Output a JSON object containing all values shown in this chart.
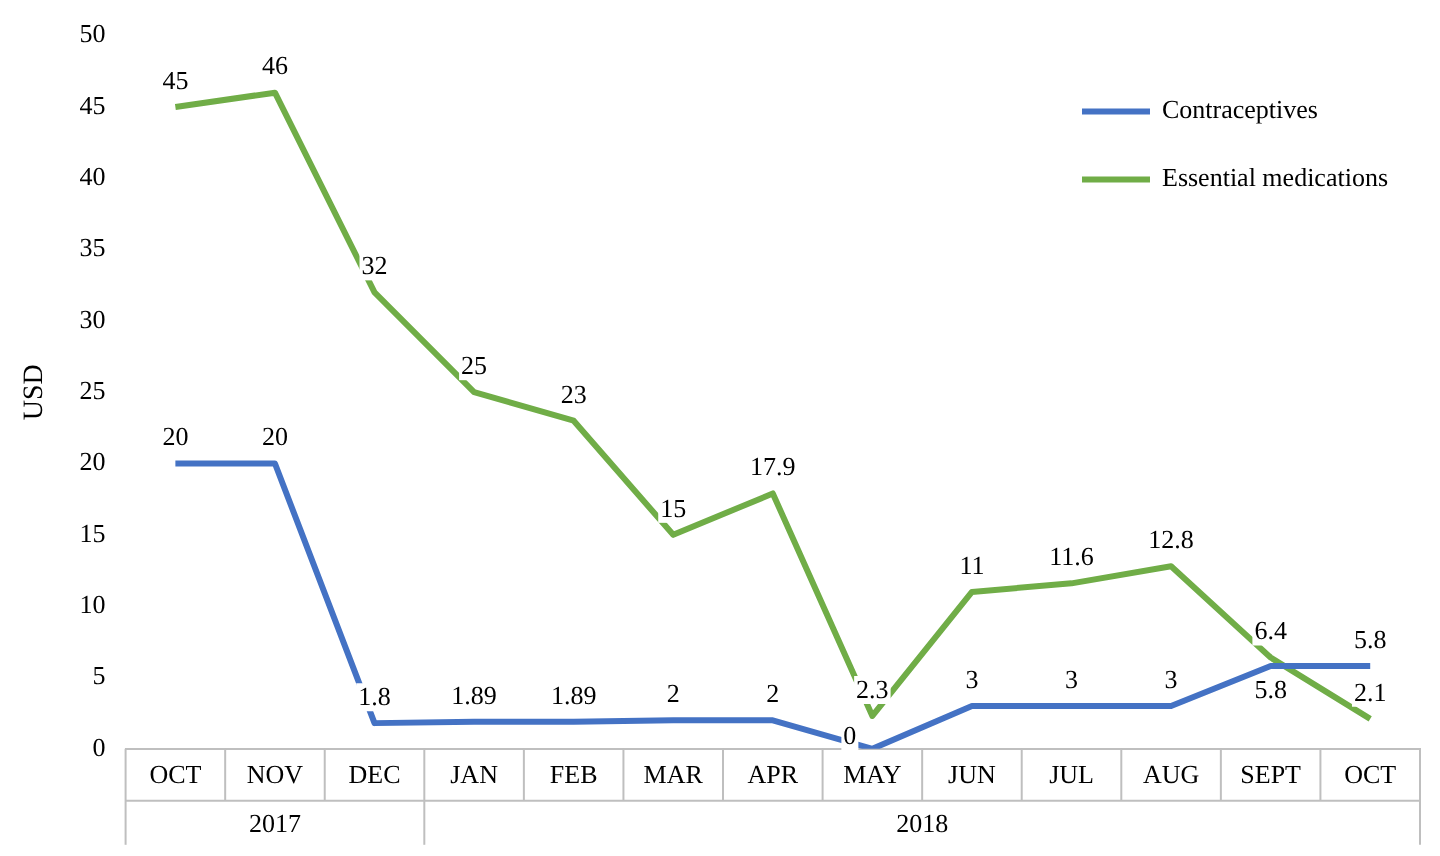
{
  "chart_data": {
    "type": "line",
    "ylabel": "USD",
    "categories": [
      "OCT",
      "NOV",
      "DEC",
      "JAN",
      "FEB",
      "MAR",
      "APR",
      "MAY",
      "JUN",
      "JUL",
      "AUG",
      "SEPT",
      "OCT"
    ],
    "series": [
      {
        "name": "Contraceptives",
        "color": "#4472c4",
        "values": [
          20,
          20,
          1.8,
          1.89,
          1.89,
          2,
          2,
          0,
          3,
          3,
          3,
          5.8,
          5.8
        ]
      },
      {
        "name": "Essential medications",
        "color": "#70ad47",
        "values": [
          45,
          46,
          32,
          25,
          23,
          15,
          17.9,
          2.3,
          11,
          11.6,
          12.8,
          6.4,
          2.1
        ]
      }
    ],
    "ylim": [
      0,
      50
    ],
    "yticks": [
      0,
      5,
      10,
      15,
      20,
      25,
      30,
      35,
      40,
      45,
      50
    ],
    "grid": false,
    "legend": "top right",
    "marker": "none",
    "data_labels": true,
    "annotations": [
      "2017",
      "2018"
    ]
  }
}
